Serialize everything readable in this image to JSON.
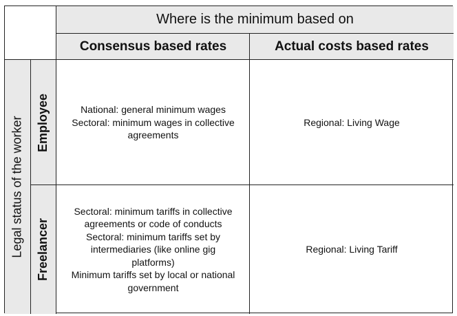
{
  "table": {
    "top_header": "Where is the minimum based on",
    "columns": [
      "Consensus based rates",
      "Actual costs based rates"
    ],
    "side_header": "Legal status of the worker",
    "rows": [
      {
        "label": "Employee",
        "cells": [
          [
            "National: general minimum wages",
            "Sectoral: minimum wages in collective",
            "agreements"
          ],
          [
            "Regional: Living Wage"
          ]
        ]
      },
      {
        "label": "Freelancer",
        "cells": [
          [
            "Sectoral: minimum tariffs in collective",
            "agreements or code of conducts",
            "Sectoral: minimum tariffs set by",
            "intermediaries (like online gig",
            "platforms)",
            "Minimum tariffs set by local or national",
            "government"
          ],
          [
            "Regional: Living Tariff"
          ]
        ]
      }
    ]
  }
}
